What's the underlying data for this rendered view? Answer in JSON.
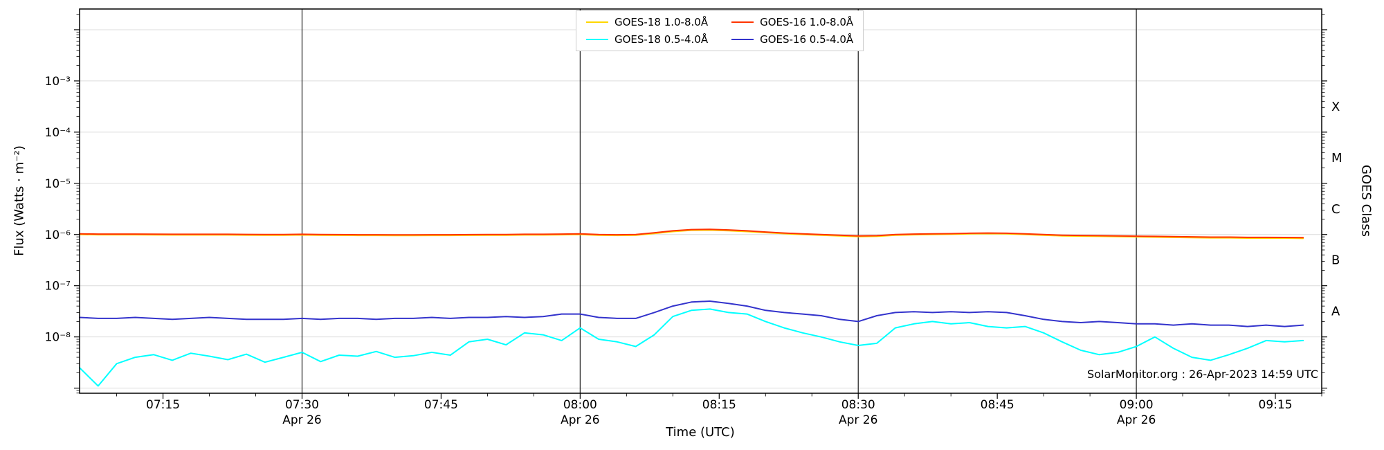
{
  "labels": {
    "y_axis": "Flux (Watts · m⁻²)",
    "y_axis_right": "GOES Class",
    "x_axis": "Time (UTC)",
    "attribution": "SolarMonitor.org : 26-Apr-2023 14:59 UTC"
  },
  "legend": {
    "items": [
      {
        "label": "GOES-18 1.0-8.0Å",
        "color": "#ffd700"
      },
      {
        "label": "GOES-18 0.5-4.0Å",
        "color": "#00ffff"
      },
      {
        "label": "GOES-16 1.0-8.0Å",
        "color": "#ff3300"
      },
      {
        "label": "GOES-16 0.5-4.0Å",
        "color": "#3333cc"
      }
    ]
  },
  "chart_data": {
    "type": "line",
    "xlabel": "Time (UTC)",
    "ylabel": "Flux (Watts · m⁻²)",
    "ylabel_right": "GOES Class",
    "x_unit": "minutes after 00:00 UTC, 26-Apr-2023",
    "xlim": [
      426,
      560
    ],
    "ylog_lim": [
      -9.1,
      -1.595
    ],
    "x_minor_step": 5,
    "x_major_ticks": [
      {
        "m": 435,
        "label": "07:15"
      },
      {
        "m": 450,
        "label": "07:30",
        "date": "Apr 26"
      },
      {
        "m": 465,
        "label": "07:45"
      },
      {
        "m": 480,
        "label": "08:00",
        "date": "Apr 26"
      },
      {
        "m": 495,
        "label": "08:15"
      },
      {
        "m": 510,
        "label": "08:30",
        "date": "Apr 26"
      },
      {
        "m": 525,
        "label": "08:45"
      },
      {
        "m": 540,
        "label": "09:00",
        "date": "Apr 26"
      },
      {
        "m": 555,
        "label": "09:15"
      }
    ],
    "y_major_ticks": [
      {
        "exp": -3,
        "label": "10⁻³"
      },
      {
        "exp": -4,
        "label": "10⁻⁴"
      },
      {
        "exp": -5,
        "label": "10⁻⁵"
      },
      {
        "exp": -6,
        "label": "10⁻⁶"
      },
      {
        "exp": -7,
        "label": "10⁻⁷"
      },
      {
        "exp": -8,
        "label": "10⁻⁸"
      }
    ],
    "date_lines": [
      450,
      480,
      510,
      540
    ],
    "goes_classes": [
      {
        "label": "X",
        "log": -3.5
      },
      {
        "label": "M",
        "log": -4.5
      },
      {
        "label": "C",
        "log": -5.5
      },
      {
        "label": "B",
        "log": -6.5
      },
      {
        "label": "A",
        "log": -7.5
      }
    ],
    "x_minutes": [
      426,
      428,
      430,
      432,
      434,
      436,
      438,
      440,
      442,
      444,
      446,
      448,
      450,
      452,
      454,
      456,
      458,
      460,
      462,
      464,
      466,
      468,
      470,
      472,
      474,
      476,
      478,
      480,
      482,
      484,
      486,
      488,
      490,
      492,
      494,
      496,
      498,
      500,
      502,
      504,
      506,
      508,
      510,
      512,
      514,
      516,
      518,
      520,
      522,
      524,
      526,
      528,
      530,
      532,
      534,
      536,
      538,
      540,
      542,
      544,
      546,
      548,
      550,
      552,
      554,
      556,
      558
    ],
    "series": [
      {
        "id": "goes18-long",
        "name": "GOES-18 1.0-8.0Å",
        "color": "#ffd700",
        "y": [
          1e-06,
          9.9e-07,
          9.9e-07,
          9.9e-07,
          9.85e-07,
          9.8e-07,
          9.8e-07,
          9.8e-07,
          9.8e-07,
          9.75e-07,
          9.7e-07,
          9.7e-07,
          9.8e-07,
          9.7e-07,
          9.65e-07,
          9.6e-07,
          9.6e-07,
          9.55e-07,
          9.55e-07,
          9.6e-07,
          9.6e-07,
          9.65e-07,
          9.7e-07,
          9.7e-07,
          9.8e-07,
          9.8e-07,
          9.9e-07,
          1e-06,
          9.7e-07,
          9.6e-07,
          9.7e-07,
          1.05e-06,
          1.14e-06,
          1.21e-06,
          1.22e-06,
          1.19e-06,
          1.14e-06,
          1.09e-06,
          1.04e-06,
          1e-06,
          9.7e-07,
          9.4e-07,
          9.1e-07,
          9.2e-07,
          9.7e-07,
          9.9e-07,
          1e-06,
          1.01e-06,
          1.03e-06,
          1.04e-06,
          1.03e-06,
          1e-06,
          9.7e-07,
          9.4e-07,
          9.3e-07,
          9.2e-07,
          9.1e-07,
          9e-07,
          8.9e-07,
          8.8e-07,
          8.7e-07,
          8.6e-07,
          8.6e-07,
          8.5e-07,
          8.5e-07,
          8.5e-07,
          8.4e-07
        ]
      },
      {
        "id": "goes16-long",
        "name": "GOES-16 1.0-8.0Å",
        "color": "#ff3300",
        "y": [
          1.03e-06,
          1.02e-06,
          1.02e-06,
          1.02e-06,
          1.015e-06,
          1.01e-06,
          1.01e-06,
          1.01e-06,
          1.01e-06,
          1.005e-06,
          1e-06,
          1e-06,
          1.01e-06,
          1e-06,
          9.95e-07,
          9.9e-07,
          9.9e-07,
          9.85e-07,
          9.85e-07,
          9.9e-07,
          9.9e-07,
          9.95e-07,
          1e-06,
          1e-06,
          1.01e-06,
          1.01e-06,
          1.02e-06,
          1.03e-06,
          1e-06,
          9.9e-07,
          1e-06,
          1.08e-06,
          1.18e-06,
          1.25e-06,
          1.26e-06,
          1.23e-06,
          1.18e-06,
          1.12e-06,
          1.07e-06,
          1.03e-06,
          1e-06,
          9.7e-07,
          9.4e-07,
          9.5e-07,
          1e-06,
          1.02e-06,
          1.03e-06,
          1.04e-06,
          1.06e-06,
          1.07e-06,
          1.06e-06,
          1.03e-06,
          1e-06,
          9.7e-07,
          9.6e-07,
          9.5e-07,
          9.4e-07,
          9.3e-07,
          9.2e-07,
          9.1e-07,
          9e-07,
          8.9e-07,
          8.9e-07,
          8.8e-07,
          8.8e-07,
          8.75e-07,
          8.7e-07
        ]
      },
      {
        "id": "goes18-short",
        "name": "GOES-18 0.5-4.0Å",
        "color": "#00ffff",
        "y": [
          2.5e-09,
          1.1e-09,
          3e-09,
          4e-09,
          4.5e-09,
          3.5e-09,
          4.8e-09,
          4.2e-09,
          3.6e-09,
          4.6e-09,
          3.2e-09,
          4e-09,
          5e-09,
          3.3e-09,
          4.4e-09,
          4.2e-09,
          5.2e-09,
          4e-09,
          4.3e-09,
          5e-09,
          4.4e-09,
          8e-09,
          9e-09,
          7e-09,
          1.2e-08,
          1.1e-08,
          8.5e-09,
          1.5e-08,
          9e-09,
          8e-09,
          6.5e-09,
          1.1e-08,
          2.5e-08,
          3.3e-08,
          3.5e-08,
          3e-08,
          2.8e-08,
          2e-08,
          1.5e-08,
          1.2e-08,
          1e-08,
          8e-09,
          6.8e-09,
          7.5e-09,
          1.5e-08,
          1.8e-08,
          2e-08,
          1.8e-08,
          1.9e-08,
          1.6e-08,
          1.5e-08,
          1.6e-08,
          1.2e-08,
          8e-09,
          5.5e-09,
          4.5e-09,
          5e-09,
          6.5e-09,
          1e-08,
          6e-09,
          4e-09,
          3.5e-09,
          4.5e-09,
          6e-09,
          8.5e-09,
          8e-09,
          8.5e-09
        ]
      },
      {
        "id": "goes16-short",
        "name": "GOES-16 0.5-4.0Å",
        "color": "#3333cc",
        "y": [
          2.4e-08,
          2.3e-08,
          2.3e-08,
          2.4e-08,
          2.3e-08,
          2.2e-08,
          2.3e-08,
          2.4e-08,
          2.3e-08,
          2.2e-08,
          2.2e-08,
          2.2e-08,
          2.3e-08,
          2.2e-08,
          2.3e-08,
          2.3e-08,
          2.2e-08,
          2.3e-08,
          2.3e-08,
          2.4e-08,
          2.3e-08,
          2.4e-08,
          2.4e-08,
          2.5e-08,
          2.4e-08,
          2.5e-08,
          2.8e-08,
          2.8e-08,
          2.4e-08,
          2.3e-08,
          2.3e-08,
          3e-08,
          4e-08,
          4.8e-08,
          5e-08,
          4.5e-08,
          4e-08,
          3.3e-08,
          3e-08,
          2.8e-08,
          2.6e-08,
          2.2e-08,
          2e-08,
          2.6e-08,
          3e-08,
          3.1e-08,
          3e-08,
          3.1e-08,
          3e-08,
          3.1e-08,
          3e-08,
          2.6e-08,
          2.2e-08,
          2e-08,
          1.9e-08,
          2e-08,
          1.9e-08,
          1.8e-08,
          1.8e-08,
          1.7e-08,
          1.8e-08,
          1.7e-08,
          1.7e-08,
          1.6e-08,
          1.7e-08,
          1.6e-08,
          1.7e-08
        ]
      }
    ]
  }
}
